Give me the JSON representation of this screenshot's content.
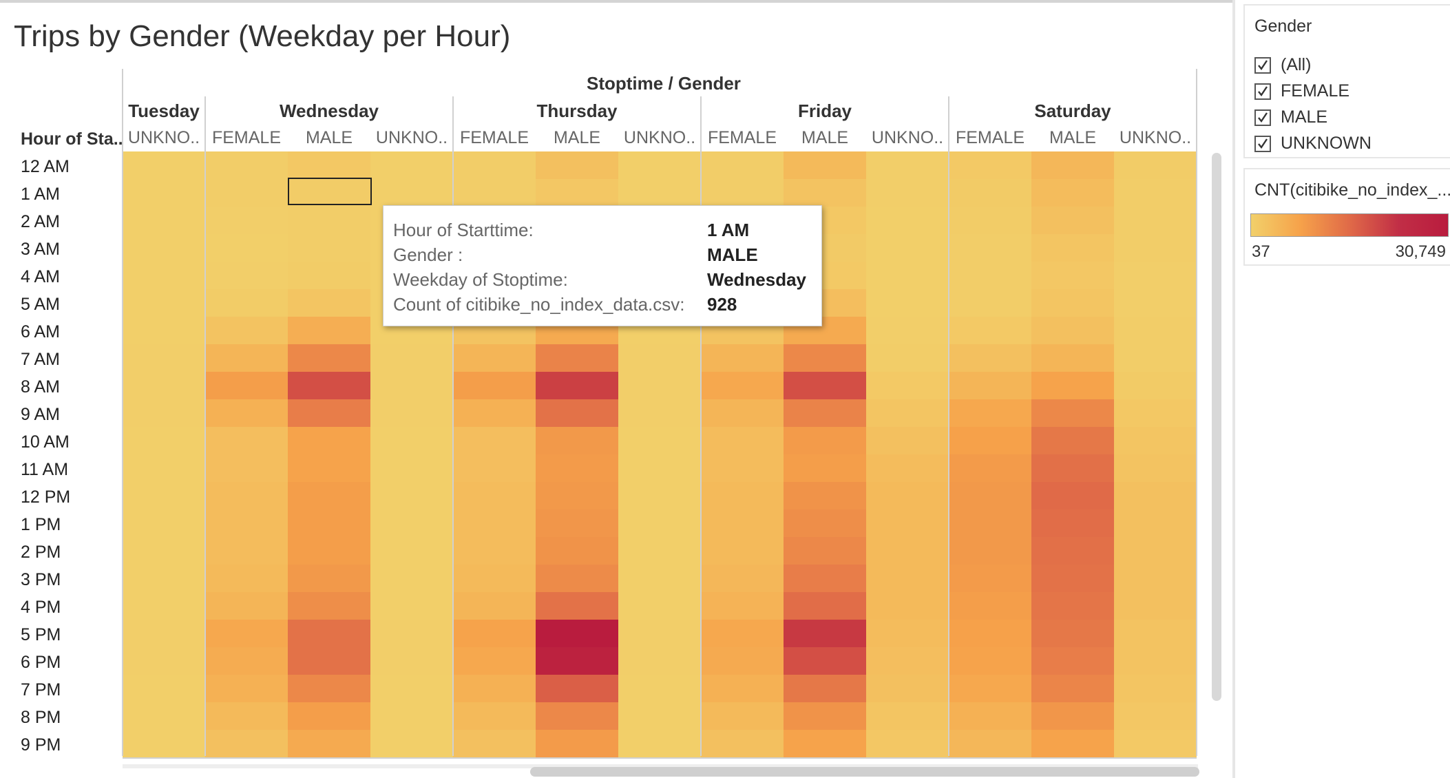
{
  "title": "Trips by Gender (Weekday per Hour)",
  "chart_data": {
    "type": "heatmap",
    "header": "Stoptime / Gender",
    "row_title": "Hour of Sta..",
    "rows": [
      "12 AM",
      "1 AM",
      "2 AM",
      "3 AM",
      "4 AM",
      "5 AM",
      "6 AM",
      "7 AM",
      "8 AM",
      "9 AM",
      "10 AM",
      "11 AM",
      "12 PM",
      "1 PM",
      "2 PM",
      "3 PM",
      "4 PM",
      "5 PM",
      "6 PM",
      "7 PM",
      "8 PM",
      "9 PM"
    ],
    "days": [
      {
        "name": "Tuesday",
        "columns": [
          "UNKNO.."
        ]
      },
      {
        "name": "Wednesday",
        "columns": [
          "FEMALE",
          "MALE",
          "UNKNO.."
        ]
      },
      {
        "name": "Thursday",
        "columns": [
          "FEMALE",
          "MALE",
          "UNKNO.."
        ]
      },
      {
        "name": "Friday",
        "columns": [
          "FEMALE",
          "MALE",
          "UNKNO.."
        ]
      },
      {
        "name": "Saturday",
        "columns": [
          "FEMALE",
          "MALE",
          "UNKNO.."
        ]
      }
    ],
    "values": [
      [
        300,
        800,
        1800,
        300,
        800,
        3500,
        300,
        800,
        5000,
        500,
        1500,
        5500,
        1000
      ],
      [
        250,
        600,
        928,
        250,
        600,
        2000,
        250,
        600,
        3000,
        400,
        1200,
        4500,
        800
      ],
      [
        200,
        400,
        700,
        200,
        400,
        1200,
        200,
        400,
        1800,
        350,
        900,
        3500,
        700
      ],
      [
        200,
        350,
        600,
        200,
        350,
        900,
        200,
        350,
        1300,
        300,
        700,
        2500,
        600
      ],
      [
        200,
        500,
        900,
        200,
        500,
        1100,
        200,
        500,
        1500,
        250,
        600,
        2000,
        500
      ],
      [
        250,
        1000,
        2500,
        250,
        1000,
        3000,
        250,
        1000,
        4000,
        300,
        800,
        2500,
        500
      ],
      [
        300,
        3000,
        7500,
        300,
        3000,
        8500,
        300,
        3000,
        8500,
        500,
        1500,
        3500,
        600
      ],
      [
        400,
        6000,
        15000,
        400,
        6000,
        16000,
        400,
        6000,
        15000,
        800,
        3500,
        6000,
        800
      ],
      [
        500,
        11000,
        24000,
        500,
        11000,
        26000,
        500,
        9000,
        24000,
        1500,
        6000,
        10000,
        1200
      ],
      [
        400,
        7000,
        17000,
        400,
        7000,
        19000,
        400,
        6000,
        16000,
        2500,
        9000,
        15000,
        1800
      ],
      [
        300,
        4000,
        10000,
        300,
        4000,
        12000,
        300,
        4500,
        11500,
        3500,
        10500,
        18000,
        2500
      ],
      [
        300,
        4000,
        10000,
        300,
        4000,
        11500,
        300,
        4500,
        11000,
        4500,
        11500,
        19500,
        3000
      ],
      [
        300,
        4500,
        11000,
        300,
        4500,
        12000,
        300,
        5000,
        13000,
        5000,
        12000,
        20500,
        3500
      ],
      [
        300,
        4500,
        11000,
        300,
        4500,
        12500,
        300,
        5000,
        14000,
        5000,
        12000,
        20000,
        3500
      ],
      [
        300,
        4500,
        11000,
        300,
        4500,
        13000,
        300,
        5000,
        15000,
        5000,
        12000,
        19500,
        3500
      ],
      [
        300,
        5000,
        12000,
        300,
        5000,
        14500,
        300,
        5500,
        17000,
        5000,
        11500,
        19000,
        3500
      ],
      [
        300,
        6000,
        14000,
        300,
        6000,
        19000,
        300,
        6500,
        20000,
        5000,
        11000,
        18500,
        3500
      ],
      [
        400,
        9000,
        19000,
        400,
        10000,
        30749,
        400,
        9000,
        27000,
        4500,
        10500,
        18000,
        3000
      ],
      [
        400,
        8000,
        19000,
        400,
        9000,
        30000,
        400,
        8500,
        24000,
        4000,
        10000,
        17000,
        3000
      ],
      [
        300,
        7000,
        15000,
        300,
        7000,
        22000,
        300,
        7000,
        18000,
        3500,
        9000,
        15500,
        2500
      ],
      [
        300,
        5000,
        11000,
        300,
        5000,
        15000,
        300,
        5000,
        13000,
        2500,
        7000,
        12500,
        2000
      ],
      [
        250,
        3500,
        8500,
        250,
        3500,
        11500,
        250,
        3500,
        10000,
        2000,
        5500,
        10000,
        1500
      ]
    ],
    "color_min": 37,
    "color_max": 30749
  },
  "tooltip": {
    "k1": "Hour of Starttime:",
    "v1": "1 AM",
    "k2": "Gender :",
    "v2": "MALE",
    "k3": "Weekday of Stoptime:",
    "v3": "Wednesday",
    "k4": "Count of citibike_no_index_data.csv:",
    "v4": "928"
  },
  "legend": {
    "title": "Gender",
    "items": [
      "(All)",
      "FEMALE",
      "MALE",
      "UNKNOWN"
    ]
  },
  "color_legend": {
    "title": "CNT(citibike_no_index_...",
    "min_label": "37",
    "max_label": "30,749",
    "colors": [
      "#f2d06a",
      "#f6a24a",
      "#e06a48",
      "#b91c3e"
    ]
  }
}
